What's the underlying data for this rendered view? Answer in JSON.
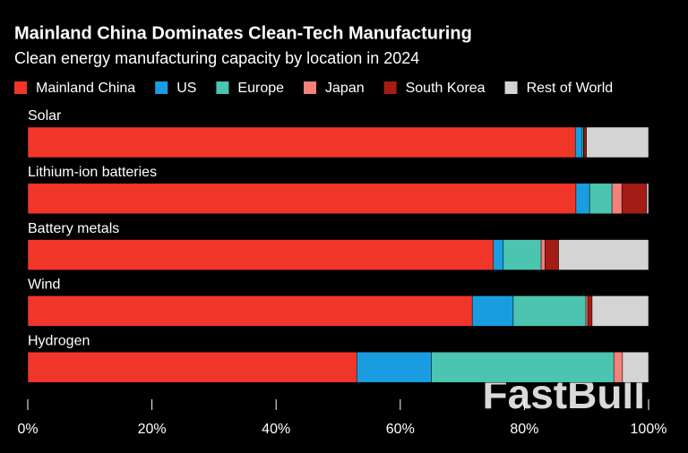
{
  "chart_data": {
    "type": "stacked-barh",
    "title": "Mainland China Dominates Clean-Tech Manufacturing",
    "subtitle": "Clean energy manufacturing capacity by location in 2024",
    "categories": [
      "Solar",
      "Lithium-ion batteries",
      "Battery metals",
      "Wind",
      "Hydrogen"
    ],
    "series": [
      {
        "name": "Mainland China",
        "color": "#f03628",
        "values": [
          88.2,
          88.3,
          75.0,
          71.6,
          53.0
        ]
      },
      {
        "name": "US",
        "color": "#1a9de0",
        "values": [
          1.1,
          2.2,
          1.6,
          6.6,
          12.0
        ]
      },
      {
        "name": "Europe",
        "color": "#4cc4b0",
        "values": [
          0.2,
          3.6,
          6.1,
          11.7,
          29.4
        ]
      },
      {
        "name": "Japan",
        "color": "#f2827a",
        "values": [
          0.1,
          1.6,
          0.6,
          0.3,
          1.4
        ]
      },
      {
        "name": "South Korea",
        "color": "#a31d14",
        "values": [
          0.4,
          4.0,
          2.2,
          0.7,
          0
        ]
      },
      {
        "name": "Rest of World",
        "color": "#d4d4d4",
        "values": [
          10.0,
          0.3,
          14.5,
          9.1,
          4.2
        ]
      }
    ],
    "xlim": [
      0,
      100
    ],
    "xticks": [
      {
        "value": 0,
        "label": "0%"
      },
      {
        "value": 20,
        "label": "20%"
      },
      {
        "value": 40,
        "label": "40%"
      },
      {
        "value": 60,
        "label": "60%"
      },
      {
        "value": 80,
        "label": "80%"
      },
      {
        "value": 100,
        "label": "100%"
      }
    ],
    "watermark": "FastBull"
  }
}
